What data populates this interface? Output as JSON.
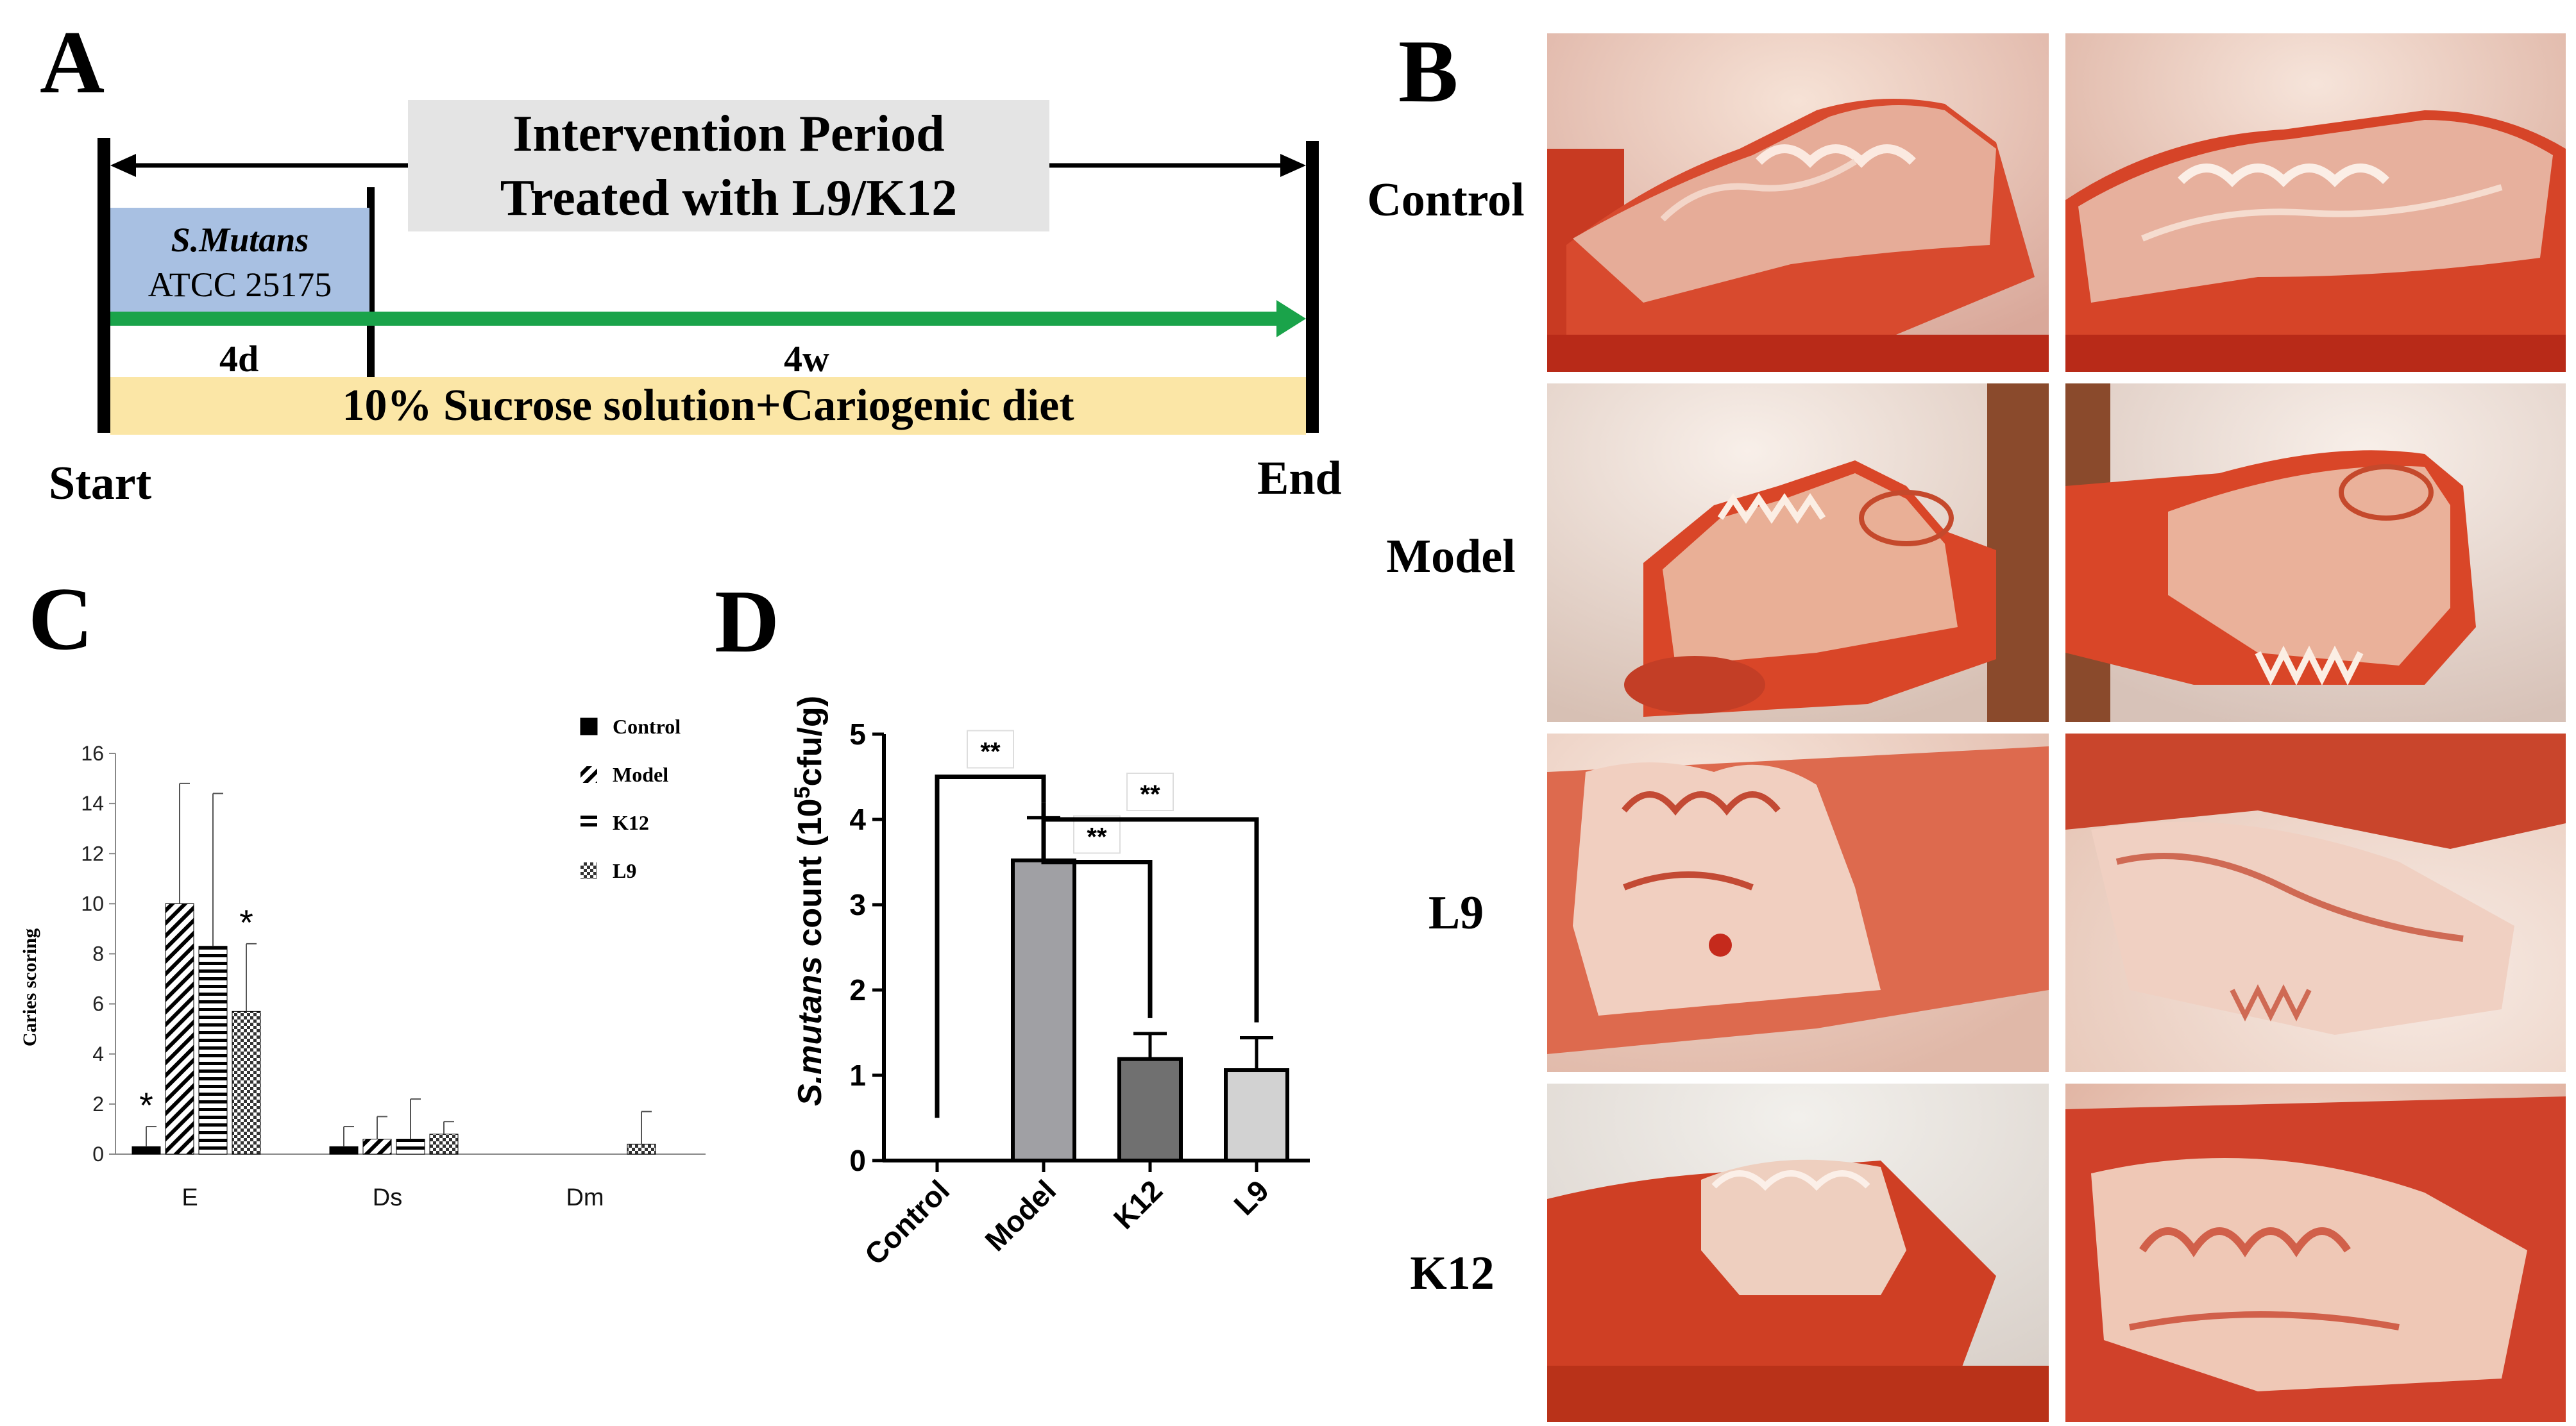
{
  "panel_letters": {
    "a": "A",
    "b": "B",
    "c": "C",
    "d": "D"
  },
  "panel_a": {
    "intervention_line1": "Intervention Period",
    "intervention_line2": "Treated with L9/K12",
    "strain_name": "S.Mutans",
    "strain_id": "ATCC 25175",
    "duration_1": "4d",
    "duration_2": "4w",
    "diet": "10% Sucrose solution+Cariogenic diet",
    "start": "Start",
    "end": "End"
  },
  "panel_b": {
    "rows": [
      "Control",
      "Model",
      "L9",
      "K12"
    ]
  },
  "chart_data": [
    {
      "panel": "C",
      "type": "bar",
      "categories": [
        "E",
        "Ds",
        "Dm"
      ],
      "series": [
        {
          "name": "Control",
          "values": [
            0.3,
            0.3,
            0
          ],
          "errors": [
            0.8,
            0.8,
            0
          ],
          "pattern": "solid"
        },
        {
          "name": "Model",
          "values": [
            10.0,
            0.6,
            0
          ],
          "errors": [
            4.8,
            0.9,
            0
          ],
          "pattern": "diagonal"
        },
        {
          "name": "K12",
          "values": [
            8.3,
            0.6,
            0
          ],
          "errors": [
            6.1,
            1.6,
            0
          ],
          "pattern": "horizontal"
        },
        {
          "name": "L9",
          "values": [
            5.7,
            0.8,
            0.4
          ],
          "errors": [
            2.7,
            0.5,
            1.3
          ],
          "pattern": "checker"
        }
      ],
      "ylabel": "Caries scoring",
      "ylim": [
        0,
        16
      ],
      "yticks": [
        "0",
        "2",
        "4",
        "6",
        "8",
        "10",
        "12",
        "14",
        "16"
      ],
      "significance": [
        {
          "category": "E",
          "series": "Control",
          "label": "*"
        },
        {
          "category": "E",
          "series": "L9",
          "label": "*"
        }
      ],
      "legend_placement": "top-right"
    },
    {
      "panel": "D",
      "type": "bar",
      "categories": [
        "Control",
        "Model",
        "K12",
        "L9"
      ],
      "values": [
        0,
        3.52,
        1.19,
        1.06
      ],
      "errors": [
        0,
        0.5,
        0.3,
        0.38
      ],
      "colors": [
        "#ffffff",
        "#a0a0a4",
        "#707070",
        "#d2d2d2"
      ],
      "ylabel_italic": "S.mutans",
      "ylabel_main": " count (10",
      "ylabel_sup": "5",
      "ylabel_end": "cfu/g)",
      "ylim": [
        0,
        5
      ],
      "yticks": [
        "0",
        "1",
        "2",
        "3",
        "4",
        "5"
      ],
      "comparisons": [
        {
          "from": "Control",
          "to": "Model",
          "label": "**"
        },
        {
          "from": "Model",
          "to": "K12",
          "label": "**"
        },
        {
          "from": "Model",
          "to": "L9",
          "label": "**"
        }
      ]
    }
  ]
}
